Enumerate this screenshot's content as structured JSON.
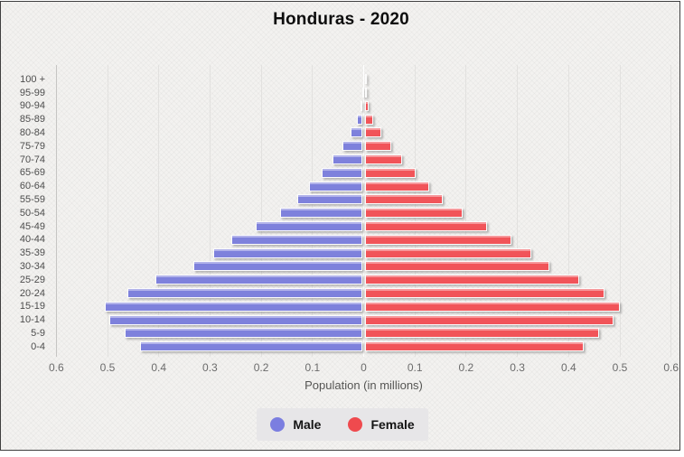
{
  "title": "Honduras - 2020",
  "x_axis": {
    "label": "Population (in millions)",
    "tick_labels": [
      "0.6",
      "0.5",
      "0.4",
      "0.3",
      "0.2",
      "0.1",
      "0",
      "0.1",
      "0.2",
      "0.3",
      "0.4",
      "0.5",
      "0.6"
    ]
  },
  "legend": {
    "male": "Male",
    "female": "Female"
  },
  "colors": {
    "male_bar": "#7e81dc",
    "female_bar": "#f15459",
    "male_legend_dot": "#7b7ee0",
    "female_legend_dot": "#ef4a4e",
    "frame_border": "#3f3f3f",
    "background": "#f3f2f0"
  },
  "chart_data": {
    "type": "bar",
    "subtype": "population-pyramid",
    "title": "Honduras - 2020",
    "xlabel": "Population (in millions)",
    "units": "millions of people",
    "xlim": [
      -0.6,
      0.6
    ],
    "x_tick_step": 0.1,
    "grid": true,
    "legend_position": "bottom",
    "age_groups_top_to_bottom": [
      "100 +",
      "95-99",
      "90-94",
      "85-89",
      "80-84",
      "75-79",
      "70-74",
      "65-69",
      "60-64",
      "55-59",
      "50-54",
      "45-49",
      "40-44",
      "35-39",
      "30-34",
      "25-29",
      "20-24",
      "15-19",
      "10-14",
      "5-9",
      "0-4"
    ],
    "series": [
      {
        "name": "Male",
        "values": [
          0.0,
          0.001,
          0.004,
          0.012,
          0.024,
          0.04,
          0.059,
          0.081,
          0.105,
          0.128,
          0.162,
          0.209,
          0.256,
          0.292,
          0.33,
          0.405,
          0.46,
          0.503,
          0.495,
          0.465,
          0.435
        ]
      },
      {
        "name": "Female",
        "values": [
          0.001,
          0.002,
          0.007,
          0.016,
          0.031,
          0.051,
          0.073,
          0.098,
          0.125,
          0.152,
          0.19,
          0.238,
          0.285,
          0.325,
          0.36,
          0.418,
          0.467,
          0.497,
          0.485,
          0.456,
          0.426
        ]
      }
    ]
  }
}
